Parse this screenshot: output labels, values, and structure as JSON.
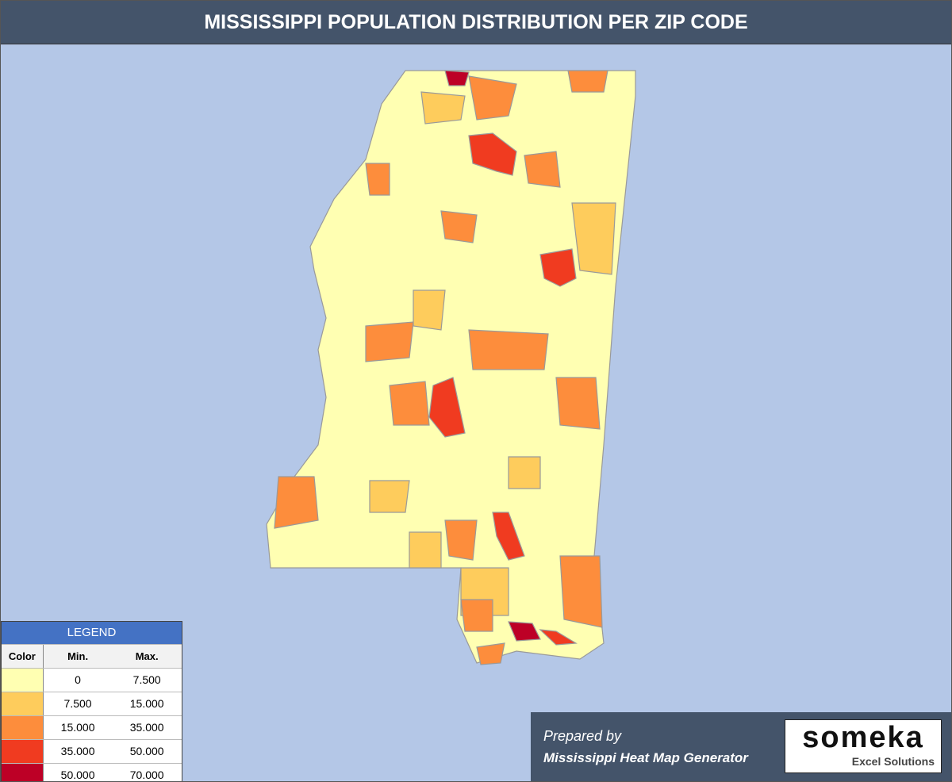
{
  "header": {
    "title": "MISSISSIPPI POPULATION DISTRIBUTION PER ZIP CODE"
  },
  "legend": {
    "title": "LEGEND",
    "columns": [
      "Color",
      "Min.",
      "Max."
    ],
    "rows": [
      {
        "color": "#ffffb2",
        "min": "0",
        "max": "7.500"
      },
      {
        "color": "#fecc5c",
        "min": "7.500",
        "max": "15.000"
      },
      {
        "color": "#fd8d3c",
        "min": "15.000",
        "max": "35.000"
      },
      {
        "color": "#f03b20",
        "min": "35.000",
        "max": "50.000"
      },
      {
        "color": "#bd0026",
        "min": "50.000",
        "max": "70.000"
      }
    ]
  },
  "footer": {
    "prepared": "Prepared by",
    "generator": "Mississippi Heat Map Generator",
    "brand": "someka",
    "brand_sub": "Excel Solutions"
  }
}
